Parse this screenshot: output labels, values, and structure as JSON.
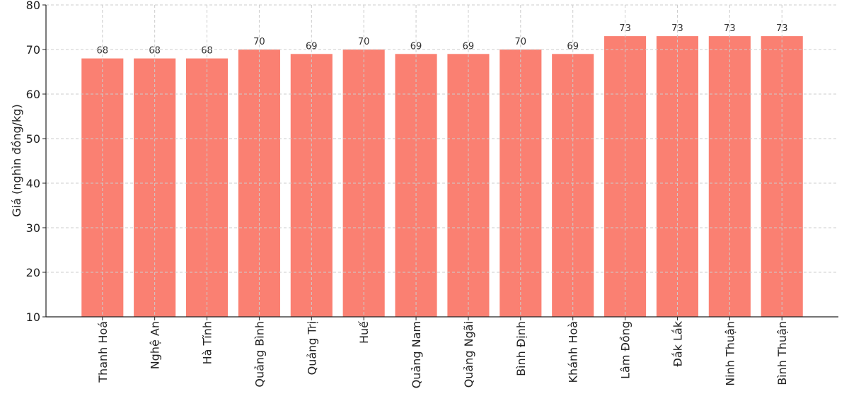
{
  "chart_data": {
    "type": "bar",
    "title": "",
    "xlabel": "",
    "ylabel": "Giá (nghìn đồng/kg)",
    "ylim": [
      10,
      80
    ],
    "yticks": [
      10,
      20,
      30,
      40,
      50,
      60,
      70,
      80
    ],
    "grid": true,
    "bar_color": "#FA8072",
    "categories": [
      "Thanh Hoá",
      "Nghệ An",
      "Hà Tĩnh",
      "Quảng Bình",
      "Quảng Trị",
      "Huế",
      "Quảng Nam",
      "Quảng Ngãi",
      "Bình Định",
      "Khánh Hoà",
      "Lâm Đồng",
      "Đắk Lắk",
      "Ninh Thuận",
      "Bình Thuận"
    ],
    "values": [
      68,
      68,
      68,
      70,
      69,
      70,
      69,
      69,
      70,
      69,
      73,
      73,
      73,
      73
    ]
  }
}
